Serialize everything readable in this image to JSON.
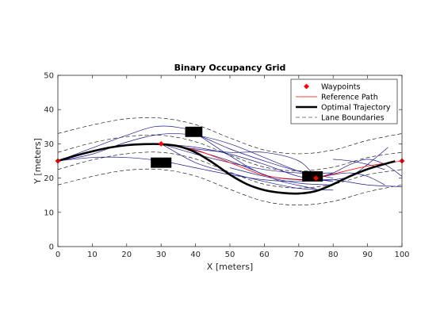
{
  "chart_data": {
    "type": "line",
    "title": "Binary Occupancy Grid",
    "xlabel": "X [meters]",
    "ylabel": "Y [meters]",
    "xlim": [
      0,
      100
    ],
    "ylim": [
      0,
      50
    ],
    "xticks": [
      0,
      10,
      20,
      30,
      40,
      50,
      60,
      70,
      80,
      90,
      100
    ],
    "yticks": [
      0,
      10,
      20,
      30,
      40,
      50
    ],
    "grid": false,
    "legend_location": "top-right",
    "legend": [
      {
        "label": "Waypoints",
        "color": "#ff0000",
        "marker": "diamond"
      },
      {
        "label": "Reference Path",
        "color": "#ff0000",
        "style": "solid"
      },
      {
        "label": "Optimal Trajectory",
        "color": "#000000",
        "style": "thick"
      },
      {
        "label": "Lane Boundaries",
        "color": "#000000",
        "style": "dashed"
      }
    ],
    "waypoints": {
      "x": [
        0,
        30,
        75,
        100
      ],
      "y": [
        25,
        30,
        20,
        25
      ],
      "color": "#ff0000"
    },
    "reference_path": {
      "x": [
        0,
        10,
        20,
        30,
        40,
        50,
        60,
        70,
        75,
        80,
        90,
        100
      ],
      "y": [
        25,
        27.8,
        29.6,
        30,
        28.2,
        24.5,
        20.8,
        19.6,
        20,
        21.2,
        23.5,
        25
      ],
      "color": "#ff0000"
    },
    "optimal_trajectory": {
      "x": [
        0,
        5,
        10,
        15,
        20,
        25,
        30,
        35,
        40,
        45,
        50,
        55,
        60,
        65,
        70,
        75,
        80,
        85,
        90,
        95,
        98
      ],
      "y": [
        25,
        26.5,
        27.8,
        28.9,
        29.6,
        29.9,
        29.9,
        29.3,
        27.5,
        24.5,
        21.0,
        18.2,
        16.5,
        15.7,
        15.5,
        16.2,
        18.2,
        20.6,
        22.6,
        24.1,
        24.9
      ],
      "color": "#000000"
    },
    "lane_boundaries": {
      "color": "#000000",
      "x": [
        0,
        10,
        20,
        30,
        40,
        50,
        60,
        70,
        80,
        90,
        100
      ],
      "series": [
        {
          "y": [
            33.0,
            35.5,
            37.3,
            37.5,
            35.6,
            31.7,
            28.2,
            27.1,
            28.2,
            31.0,
            33.0
          ]
        },
        {
          "y": [
            27.5,
            30.3,
            32.1,
            32.5,
            30.6,
            26.7,
            23.2,
            22.1,
            23.2,
            26.0,
            27.5
          ]
        },
        {
          "y": [
            22.5,
            25.3,
            27.1,
            27.5,
            25.6,
            21.7,
            18.2,
            17.1,
            18.2,
            21.0,
            22.5
          ]
        },
        {
          "y": [
            18.0,
            20.5,
            22.3,
            22.5,
            20.6,
            16.7,
            13.2,
            12.1,
            13.2,
            16.0,
            18.0
          ]
        }
      ]
    },
    "candidate_trajectories": {
      "color": "#1a1a8c",
      "series": [
        {
          "x": [
            0,
            10,
            20,
            30,
            40,
            50,
            60,
            70,
            75
          ],
          "y": [
            25,
            27.0,
            30.5,
            32.8,
            32.5,
            30.0,
            26.0,
            22.0,
            21.0
          ]
        },
        {
          "x": [
            0,
            10,
            20,
            28,
            35,
            40,
            50,
            60,
            70,
            75
          ],
          "y": [
            25,
            28.8,
            32.5,
            35.0,
            34.8,
            33.0,
            26.5,
            21.0,
            19.5,
            20.0
          ]
        },
        {
          "x": [
            0,
            10,
            20,
            30,
            40,
            50,
            60,
            70,
            80
          ],
          "y": [
            25,
            26.0,
            26.0,
            25.0,
            23.0,
            21.0,
            19.5,
            19.0,
            19.5
          ]
        },
        {
          "x": [
            30,
            40,
            50,
            60,
            70,
            75
          ],
          "y": [
            30,
            28.5,
            27.5,
            27.5,
            25.0,
            20.0
          ]
        },
        {
          "x": [
            30,
            40,
            50,
            60,
            70,
            80
          ],
          "y": [
            30,
            29.0,
            27.0,
            24.0,
            20.5,
            19.0
          ]
        },
        {
          "x": [
            30,
            40,
            50,
            60,
            70,
            80
          ],
          "y": [
            30,
            27.0,
            24.5,
            22.5,
            21.5,
            21.5
          ]
        },
        {
          "x": [
            30,
            40,
            50,
            60,
            70,
            80
          ],
          "y": [
            30,
            24.5,
            21.5,
            19.0,
            17.0,
            16.5
          ]
        },
        {
          "x": [
            30,
            40,
            50,
            60,
            65,
            75
          ],
          "y": [
            30,
            28.0,
            25.0,
            21.0,
            19.0,
            16.8
          ]
        },
        {
          "x": [
            37,
            42,
            50,
            60,
            70,
            80
          ],
          "y": [
            33.5,
            32.0,
            28.5,
            25.0,
            22.0,
            20.0
          ]
        },
        {
          "x": [
            70,
            80,
            90,
            100
          ],
          "y": [
            19.5,
            19.5,
            18.0,
            17.5
          ]
        },
        {
          "x": [
            75,
            80,
            85,
            90,
            95,
            100
          ],
          "y": [
            20,
            21.5,
            24.0,
            25.5,
            24.0,
            20.5
          ]
        },
        {
          "x": [
            75,
            80,
            85,
            90,
            95
          ],
          "y": [
            20,
            21.0,
            21.5,
            20.5,
            18.0
          ]
        },
        {
          "x": [
            80,
            85,
            90,
            96
          ],
          "y": [
            19.5,
            20.5,
            24.0,
            29.0
          ]
        },
        {
          "x": [
            80,
            85,
            90,
            95
          ],
          "y": [
            25.5,
            25.0,
            24.0,
            22.5
          ]
        },
        {
          "x": [
            50,
            60,
            70,
            80
          ],
          "y": [
            23.0,
            20.5,
            18.5,
            18.0
          ]
        }
      ]
    },
    "obstacles": {
      "color": "#000000",
      "boxes": [
        {
          "x": [
            37,
            42
          ],
          "y": [
            32,
            35
          ]
        },
        {
          "x": [
            27,
            33
          ],
          "y": [
            23,
            26
          ]
        },
        {
          "x": [
            71,
            77
          ],
          "y": [
            19,
            22
          ]
        }
      ]
    }
  }
}
